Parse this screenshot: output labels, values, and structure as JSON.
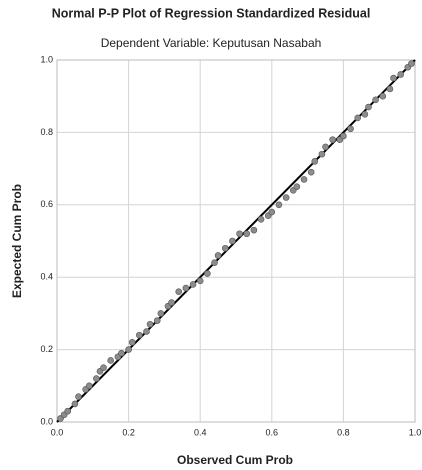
{
  "chart_data": {
    "type": "scatter",
    "title": "Normal P-P Plot of Regression Standardized Residual",
    "subtitle": "Dependent Variable: Keputusan Nasabah",
    "x_label": "Observed Cum Prob",
    "y_label": "Expected Cum Prob",
    "x": [
      0.01,
      0.02,
      0.03,
      0.05,
      0.06,
      0.08,
      0.09,
      0.11,
      0.12,
      0.13,
      0.15,
      0.17,
      0.18,
      0.2,
      0.21,
      0.23,
      0.25,
      0.26,
      0.28,
      0.29,
      0.31,
      0.32,
      0.34,
      0.36,
      0.38,
      0.4,
      0.42,
      0.44,
      0.45,
      0.47,
      0.49,
      0.51,
      0.53,
      0.55,
      0.57,
      0.59,
      0.6,
      0.62,
      0.64,
      0.66,
      0.67,
      0.69,
      0.71,
      0.72,
      0.74,
      0.75,
      0.77,
      0.79,
      0.8,
      0.82,
      0.84,
      0.86,
      0.87,
      0.89,
      0.91,
      0.93,
      0.94,
      0.96,
      0.98,
      0.99
    ],
    "values": [
      0.01,
      0.02,
      0.03,
      0.05,
      0.07,
      0.09,
      0.1,
      0.12,
      0.14,
      0.15,
      0.17,
      0.18,
      0.19,
      0.2,
      0.22,
      0.24,
      0.25,
      0.27,
      0.28,
      0.3,
      0.32,
      0.33,
      0.36,
      0.37,
      0.38,
      0.39,
      0.41,
      0.44,
      0.46,
      0.48,
      0.5,
      0.52,
      0.52,
      0.53,
      0.56,
      0.57,
      0.58,
      0.6,
      0.62,
      0.64,
      0.65,
      0.67,
      0.69,
      0.72,
      0.74,
      0.76,
      0.78,
      0.78,
      0.79,
      0.81,
      0.84,
      0.85,
      0.87,
      0.89,
      0.9,
      0.92,
      0.95,
      0.96,
      0.98,
      0.99
    ],
    "color": "#8c8c8c",
    "line_color": "#000000",
    "xlim": [
      0,
      1
    ],
    "ylim": [
      0,
      1
    ],
    "xticks": [
      {
        "value": 0,
        "label": "0.0"
      },
      0.2,
      0.4,
      0.6,
      0.8,
      {
        "value": 1,
        "label": "1.0"
      }
    ],
    "yticks": [
      {
        "value": 0,
        "label": "0.0"
      },
      0.2,
      0.4,
      0.6,
      0.8,
      {
        "value": 1,
        "label": "1.0"
      }
    ],
    "grid": true
  }
}
